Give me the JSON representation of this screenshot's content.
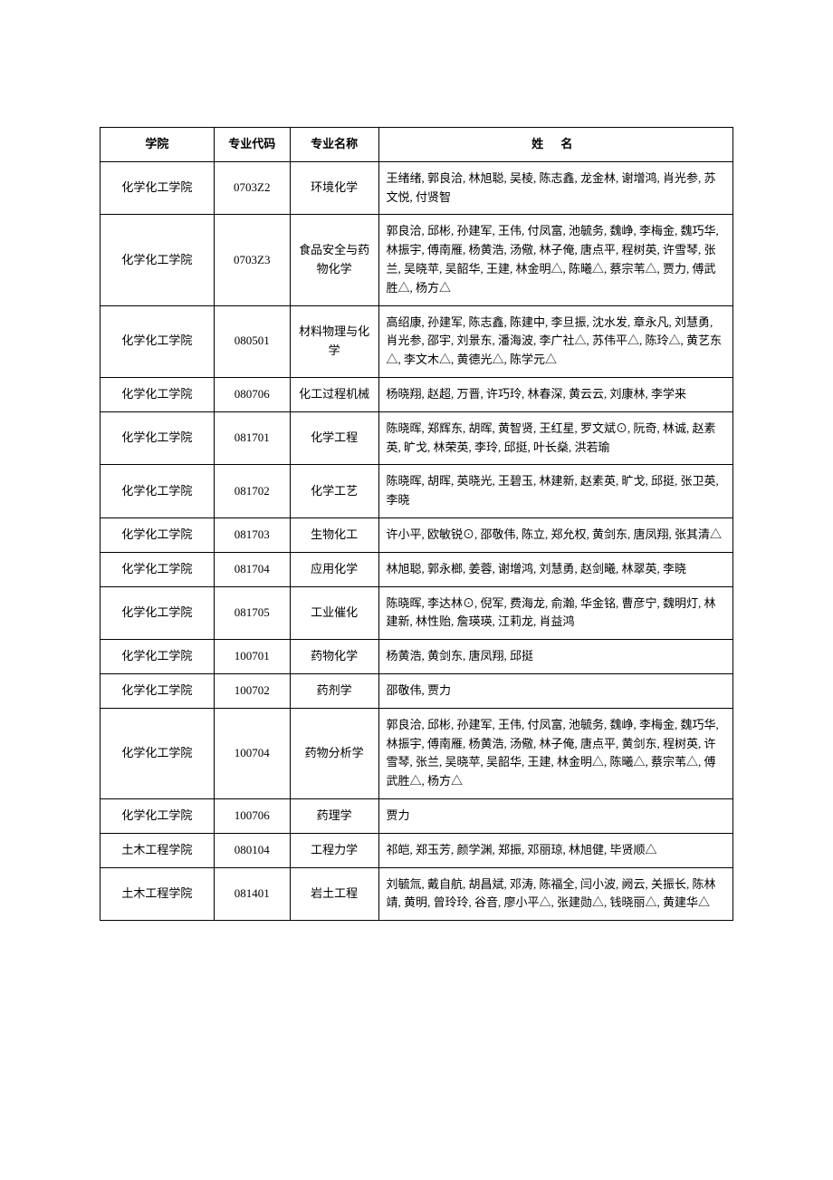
{
  "table": {
    "headers": {
      "college": "学院",
      "code": "专业代码",
      "major": "专业名称",
      "names": "姓 名"
    },
    "rows": [
      {
        "college": "化学化工学院",
        "code": "0703Z2",
        "major": "环境化学",
        "names": "王绪绪, 郭良洽, 林旭聪, 吴棱, 陈志鑫, 龙金林, 谢增鸿, 肖光参, 苏文悦, 付贤智"
      },
      {
        "college": "化学化工学院",
        "code": "0703Z3",
        "major": "食品安全与药物化学",
        "names": "郭良洽, 邱彬, 孙建军, 王伟, 付凤富, 池毓务, 魏峥, 李梅金, 魏巧华, 林振宇, 傅南雁, 杨黄浩, 汤儆, 林子俺, 唐点平, 程树英, 许雪琴, 张兰, 吴晓苹, 吴韶华, 王建, 林金明△, 陈曦△, 蔡宗苇△, 贾力, 傅武胜△, 杨方△"
      },
      {
        "college": "化学化工学院",
        "code": "080501",
        "major": "材料物理与化学",
        "names": "高绍康, 孙建军, 陈志鑫, 陈建中, 李旦振, 沈水发, 章永凡, 刘慧勇, 肖光参, 邵宇, 刘景东, 潘海波, 李广社△, 苏伟平△, 陈玲△, 黄艺东△, 李文木△, 黄德光△, 陈学元△"
      },
      {
        "college": "化学化工学院",
        "code": "080706",
        "major": "化工过程机械",
        "names": "杨晓翔, 赵超, 万晋, 许巧玲, 林春深, 黄云云, 刘康林, 李学来"
      },
      {
        "college": "化学化工学院",
        "code": "081701",
        "major": "化学工程",
        "names": "陈晓晖, 郑辉东, 胡晖, 黄智贤, 王红星, 罗文斌⊙, 阮奇, 林诚, 赵素英, 旷戈, 林荣英, 李玲, 邱挺, 叶长燊, 洪若瑜"
      },
      {
        "college": "化学化工学院",
        "code": "081702",
        "major": "化学工艺",
        "names": "陈晓晖, 胡晖, 英晓光, 王碧玉, 林建新, 赵素英, 旷戈, 邱挺, 张卫英, 李晓"
      },
      {
        "college": "化学化工学院",
        "code": "081703",
        "major": "生物化工",
        "names": "许小平, 欧敏锐⊙, 邵敬伟, 陈立, 郑允权, 黄剑东, 唐凤翔, 张其清△"
      },
      {
        "college": "化学化工学院",
        "code": "081704",
        "major": "应用化学",
        "names": "林旭聪, 郭永榔, 姜蓉, 谢增鸿, 刘慧勇, 赵剑曦, 林翠英, 李晓"
      },
      {
        "college": "化学化工学院",
        "code": "081705",
        "major": "工业催化",
        "names": "陈晓晖, 李达林⊙, 倪军, 费海龙, 俞瀚, 华金铭, 曹彦宁, 魏明灯, 林建新, 林性贻, 詹瑛瑛, 江莉龙, 肖益鸿"
      },
      {
        "college": "化学化工学院",
        "code": "100701",
        "major": "药物化学",
        "names": "杨黄浩, 黄剑东, 唐凤翔, 邱挺"
      },
      {
        "college": "化学化工学院",
        "code": "100702",
        "major": "药剂学",
        "names": "邵敬伟, 贾力"
      },
      {
        "college": "化学化工学院",
        "code": "100704",
        "major": "药物分析学",
        "names": "郭良洽, 邱彬, 孙建军, 王伟, 付凤富, 池毓务, 魏峥, 李梅金, 魏巧华, 林振宇, 傅南雁, 杨黄浩, 汤儆, 林子俺, 唐点平, 黄剑东, 程树英, 许雪琴, 张兰, 吴晓苹, 吴韶华, 王建, 林金明△, 陈曦△, 蔡宗苇△, 傅武胜△, 杨方△"
      },
      {
        "college": "化学化工学院",
        "code": "100706",
        "major": "药理学",
        "names": "贾力"
      },
      {
        "college": "土木工程学院",
        "code": "080104",
        "major": "工程力学",
        "names": "祁皑, 郑玉芳, 颜学渊, 郑振, 邓丽琼, 林旭健, 毕贤顺△"
      },
      {
        "college": "土木工程学院",
        "code": "081401",
        "major": "岩土工程",
        "names": "刘毓氚, 戴自航, 胡昌斌, 邓涛, 陈福全, 闫小波, 阙云, 关振长, 陈林靖, 黄明, 曾玲玲, 谷音, 廖小平△, 张建勋△, 钱晓丽△, 黄建华△"
      }
    ]
  }
}
